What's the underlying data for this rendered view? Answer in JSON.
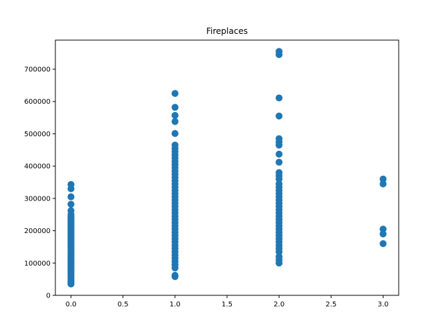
{
  "chart_data": {
    "type": "scatter",
    "title": "Fireplaces",
    "xlabel": "",
    "ylabel": "",
    "xlim": [
      -0.15,
      3.15
    ],
    "ylim": [
      0,
      790000
    ],
    "xticks": [
      0.0,
      0.5,
      1.0,
      1.5,
      2.0,
      2.5,
      3.0
    ],
    "xtick_labels": [
      "0.0",
      "0.5",
      "1.0",
      "1.5",
      "2.0",
      "2.5",
      "3.0"
    ],
    "yticks": [
      0,
      100000,
      200000,
      300000,
      400000,
      500000,
      600000,
      700000
    ],
    "ytick_labels": [
      "0",
      "100000",
      "200000",
      "300000",
      "400000",
      "500000",
      "600000",
      "700000"
    ],
    "grid": false,
    "point_color": "#1f77b4",
    "series": [
      {
        "x": 0,
        "y": [
          343000,
          330000,
          305000,
          282000,
          262000,
          250000,
          244000,
          238000,
          232000,
          226000,
          220000,
          214000,
          208000,
          202000,
          196000,
          190000,
          184000,
          178000,
          172000,
          166000,
          160000,
          154000,
          148000,
          142000,
          136000,
          130000,
          124000,
          118000,
          112000,
          106000,
          100000,
          94000,
          88000,
          82000,
          76000,
          70000,
          64000,
          58000,
          52000,
          45000,
          40000,
          35000
        ]
      },
      {
        "x": 1,
        "y": [
          625000,
          582000,
          557000,
          538000,
          501000,
          465000,
          455000,
          445000,
          435000,
          425000,
          415000,
          405000,
          395000,
          385000,
          375000,
          365000,
          355000,
          345000,
          335000,
          325000,
          315000,
          305000,
          295000,
          285000,
          275000,
          265000,
          255000,
          245000,
          235000,
          225000,
          215000,
          205000,
          195000,
          185000,
          175000,
          165000,
          155000,
          145000,
          135000,
          125000,
          115000,
          105000,
          95000,
          85000,
          62000,
          58000
        ]
      },
      {
        "x": 2,
        "y": [
          755000,
          745000,
          611000,
          555000,
          485000,
          475000,
          465000,
          437000,
          412000,
          380000,
          370000,
          360000,
          345000,
          335000,
          325000,
          315000,
          305000,
          295000,
          285000,
          275000,
          265000,
          255000,
          245000,
          235000,
          225000,
          215000,
          205000,
          195000,
          185000,
          175000,
          165000,
          155000,
          145000,
          135000,
          120000,
          110000,
          100000
        ]
      },
      {
        "x": 3,
        "y": [
          360000,
          345000,
          205000,
          190000,
          160000
        ]
      }
    ]
  }
}
